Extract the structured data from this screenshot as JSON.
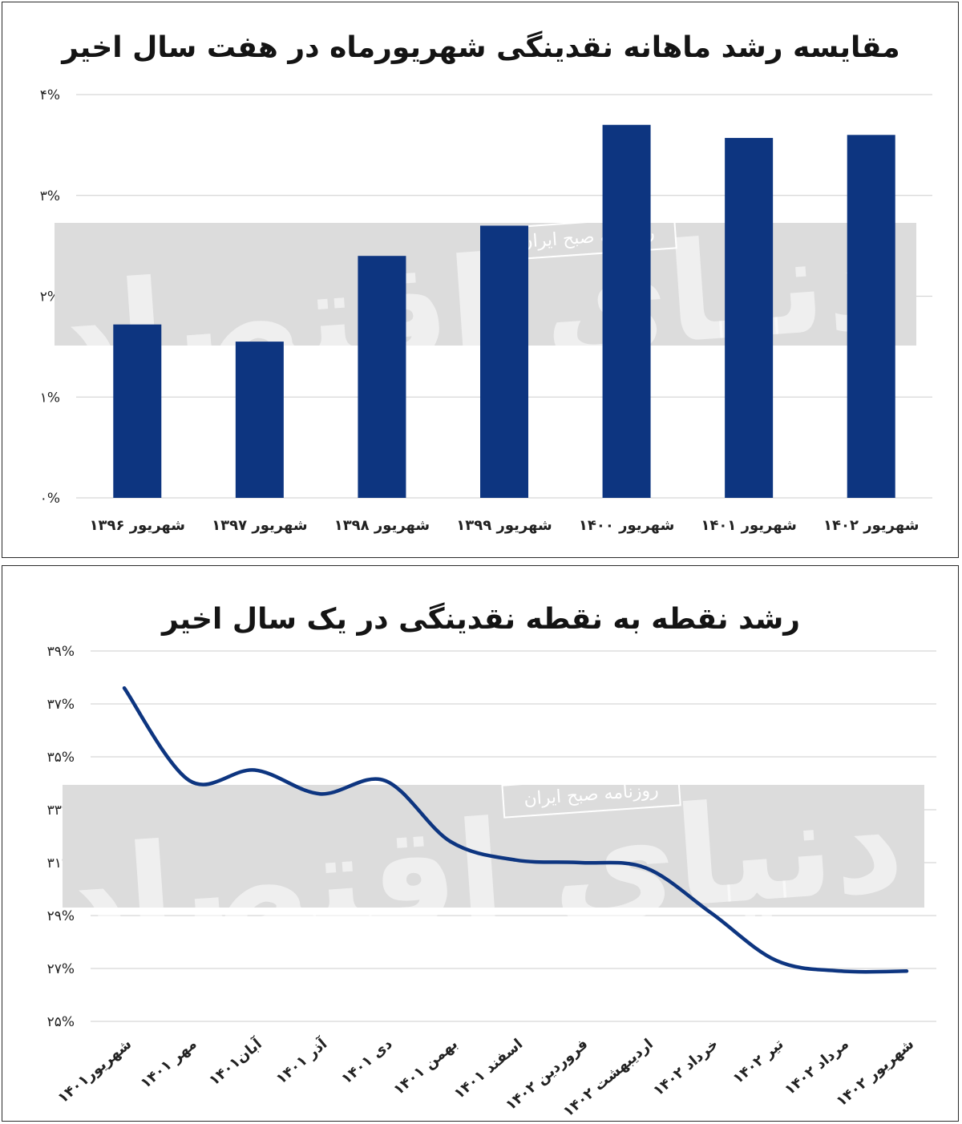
{
  "chart_data": [
    {
      "type": "bar",
      "title": "مقایسه رشد ماهانه نقدینگی شهریورماه در هفت سال اخیر",
      "categories": [
        "شهریور ۱۴۰۲",
        "شهریور ۱۴۰۱",
        "شهریور ۱۴۰۰",
        "شهریور ۱۳۹۹",
        "شهریور ۱۳۹۸",
        "شهریور ۱۳۹۷",
        "شهریور ۱۳۹۶"
      ],
      "values": [
        3.6,
        3.57,
        3.7,
        2.7,
        2.4,
        1.55,
        1.72
      ],
      "ylim": [
        0,
        4
      ],
      "yticks": [
        0,
        1,
        2,
        3,
        4
      ],
      "ytick_labels": [
        "۰%",
        "۱%",
        "۲%",
        "۳%",
        "۴%"
      ],
      "xlabel": "",
      "ylabel": "",
      "grid": true,
      "color": "#0d3580"
    },
    {
      "type": "line",
      "title": "رشد نقطه به نقطه نقدینگی در یک سال اخیر",
      "categories": [
        "شهریور۱۴۰۱",
        "مهر ۱۴۰۱",
        "آبان۱۴۰۱",
        "آذر ۱۴۰۱",
        "دی ۱۴۰۱",
        "بهمن ۱۴۰۱",
        "اسفند ۱۴۰۱",
        "فروردین ۱۴۰۲",
        "اردیبهشت ۱۴۰۲",
        "خرداد ۱۴۰۲",
        "تیر ۱۴۰۲",
        "مرداد ۱۴۰۲",
        "شهریور ۱۴۰۲"
      ],
      "values": [
        37.6,
        34.1,
        34.5,
        33.6,
        34.1,
        31.8,
        31.1,
        31.0,
        30.8,
        29.1,
        27.3,
        26.9,
        26.9
      ],
      "ylim": [
        25,
        39
      ],
      "yticks": [
        25,
        27,
        29,
        31,
        33,
        35,
        37,
        39
      ],
      "ytick_labels": [
        "۲۵%",
        "۲۷%",
        "۲۹%",
        "۳۱%",
        "۳۳%",
        "۳۵%",
        "۳۷%",
        "۳۹%"
      ],
      "xlabel": "",
      "ylabel": "",
      "grid": true,
      "color": "#0d3580"
    }
  ],
  "watermark": {
    "logo_text": "دنیای اقتصاد",
    "stamp_text": "روزنامه صبح ایران"
  }
}
